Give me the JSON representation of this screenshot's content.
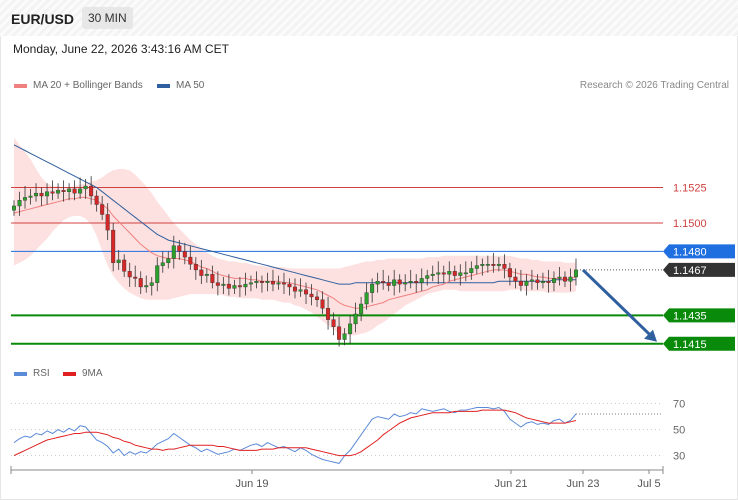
{
  "header": {
    "symbol": "EUR/USD",
    "timeframe": "30 MIN"
  },
  "timestamp": "Monday, June 22, 2026 3:43:16 AM CET",
  "legend": [
    {
      "label": "MA 20 + Bollinger Bands",
      "color": "#f08080"
    },
    {
      "label": "MA 50",
      "color": "#2f5f9e"
    }
  ],
  "rsi_legend": [
    {
      "label": "RSI",
      "color": "#5b8ad8"
    },
    {
      "label": "9MA",
      "color": "#e02020"
    }
  ],
  "credit": "Research © 2026 Trading Central",
  "colors": {
    "bull": "#2ca02c",
    "bear": "#d62728",
    "support": "#0a8a0a",
    "current": "#333333",
    "pivot": "#1f6fe0",
    "resistance": "#d04040",
    "ma20": "#f08080",
    "ma50": "#2f5f9e",
    "band": "#fde0e0",
    "arrow": "#2f5f9e"
  },
  "chart_data": [
    {
      "type": "candlestick",
      "title": "EUR/USD",
      "ylim": [
        1.1405,
        1.1595
      ],
      "x_labels": [
        "Jun 19",
        "Jun 21",
        "Jun 23",
        "Jul 5"
      ],
      "levels": [
        {
          "value": 1.1525,
          "label": "1.1525",
          "kind": "resistance"
        },
        {
          "value": 1.15,
          "label": "1.1500",
          "kind": "resistance"
        },
        {
          "value": 1.148,
          "label": "1.1480",
          "kind": "pivot"
        },
        {
          "value": 1.1467,
          "label": "1.1467",
          "kind": "current"
        },
        {
          "value": 1.1435,
          "label": "1.1435",
          "kind": "support"
        },
        {
          "value": 1.1415,
          "label": "1.1415",
          "kind": "support"
        }
      ],
      "close": [
        1.1512,
        1.1516,
        1.1518,
        1.1519,
        1.1521,
        1.1519,
        1.1522,
        1.1521,
        1.1523,
        1.1522,
        1.1524,
        1.1521,
        1.1524,
        1.1526,
        1.1519,
        1.1513,
        1.1506,
        1.1495,
        1.1472,
        1.1474,
        1.1466,
        1.1462,
        1.1461,
        1.1455,
        1.1456,
        1.1458,
        1.147,
        1.1472,
        1.1475,
        1.1484,
        1.148,
        1.1476,
        1.1471,
        1.1467,
        1.1463,
        1.1464,
        1.1458,
        1.1456,
        1.1457,
        1.1454,
        1.1456,
        1.1455,
        1.1457,
        1.1458,
        1.1459,
        1.1458,
        1.1459,
        1.1457,
        1.1458,
        1.1457,
        1.1455,
        1.1452,
        1.1453,
        1.145,
        1.1448,
        1.1446,
        1.144,
        1.1432,
        1.1427,
        1.1418,
        1.1422,
        1.1429,
        1.1436,
        1.1443,
        1.1451,
        1.1457,
        1.1459,
        1.1458,
        1.1456,
        1.146,
        1.1457,
        1.1458,
        1.1459,
        1.1458,
        1.1461,
        1.1463,
        1.1464,
        1.1465,
        1.1464,
        1.1466,
        1.1463,
        1.1465,
        1.1465,
        1.1468,
        1.147,
        1.1471,
        1.1471,
        1.147,
        1.1471,
        1.1468,
        1.1462,
        1.1459,
        1.1456,
        1.1459,
        1.146,
        1.1458,
        1.1459,
        1.1458,
        1.1461,
        1.1462,
        1.1459,
        1.1462,
        1.1467
      ],
      "ma20": [
        1.1507,
        1.1508,
        1.1509,
        1.151,
        1.1511,
        1.1512,
        1.1513,
        1.1514,
        1.1515,
        1.1516,
        1.1517,
        1.1517,
        1.1518,
        1.1518,
        1.1517,
        1.1516,
        1.1513,
        1.151,
        1.1505,
        1.1501,
        1.1497,
        1.1493,
        1.1489,
        1.1485,
        1.1482,
        1.1479,
        1.1477,
        1.1476,
        1.1475,
        1.1475,
        1.1475,
        1.1474,
        1.1473,
        1.1471,
        1.1469,
        1.1468,
        1.1466,
        1.1464,
        1.1463,
        1.1462,
        1.1461,
        1.1461,
        1.1461,
        1.146,
        1.146,
        1.1459,
        1.1459,
        1.1459,
        1.1459,
        1.1458,
        1.1458,
        1.1457,
        1.1456,
        1.1455,
        1.1454,
        1.1453,
        1.1451,
        1.1449,
        1.1447,
        1.1444,
        1.1442,
        1.1441,
        1.144,
        1.144,
        1.1441,
        1.1442,
        1.1443,
        1.1444,
        1.1446,
        1.1447,
        1.1448,
        1.1449,
        1.145,
        1.1451,
        1.1452,
        1.1453,
        1.1455,
        1.1456,
        1.1457,
        1.1459,
        1.146,
        1.1461,
        1.1462,
        1.1463,
        1.1464,
        1.1465,
        1.1466,
        1.1467,
        1.1467,
        1.1467,
        1.1466,
        1.1465,
        1.1464,
        1.1464,
        1.1463,
        1.1462,
        1.1462,
        1.1461,
        1.1461,
        1.1461,
        1.146,
        1.1461,
        1.1462
      ],
      "upper_band": [
        1.156,
        1.1555,
        1.155,
        1.1545,
        1.1538,
        1.1532,
        1.1528,
        1.1526,
        1.1526,
        1.1525,
        1.1525,
        1.1526,
        1.1527,
        1.1528,
        1.1529,
        1.153,
        1.1532,
        1.1535,
        1.1537,
        1.1538,
        1.1538,
        1.1537,
        1.1534,
        1.153,
        1.1526,
        1.1521,
        1.1515,
        1.151,
        1.1505,
        1.15,
        1.1496,
        1.1492,
        1.1488,
        1.1485,
        1.1482,
        1.1479,
        1.1477,
        1.1475,
        1.1474,
        1.1473,
        1.1473,
        1.1472,
        1.1472,
        1.1471,
        1.147,
        1.147,
        1.1469,
        1.1469,
        1.1469,
        1.1469,
        1.1468,
        1.1468,
        1.1468,
        1.1468,
        1.1468,
        1.1468,
        1.1468,
        1.1468,
        1.1468,
        1.1468,
        1.1469,
        1.147,
        1.1471,
        1.1472,
        1.1473,
        1.1473,
        1.1474,
        1.1474,
        1.1475,
        1.1475,
        1.1475,
        1.1475,
        1.1475,
        1.1475,
        1.1475,
        1.1476,
        1.1476,
        1.1476,
        1.1477,
        1.1477,
        1.1477,
        1.1477,
        1.1477,
        1.1477,
        1.1477,
        1.1477,
        1.1477,
        1.1477,
        1.1477,
        1.1477,
        1.1477,
        1.1476,
        1.1475,
        1.1475,
        1.1474,
        1.1474,
        1.1473,
        1.1473,
        1.1473,
        1.1473,
        1.1472,
        1.1472,
        1.1472
      ],
      "lower_band": [
        1.147,
        1.1472,
        1.1474,
        1.1477,
        1.1481,
        1.1485,
        1.1489,
        1.1494,
        1.1498,
        1.1502,
        1.1504,
        1.1505,
        1.1505,
        1.1503,
        1.1499,
        1.1491,
        1.148,
        1.147,
        1.1463,
        1.1458,
        1.1454,
        1.1451,
        1.1449,
        1.1447,
        1.1446,
        1.1446,
        1.1446,
        1.1446,
        1.1446,
        1.1447,
        1.1448,
        1.1449,
        1.145,
        1.145,
        1.145,
        1.145,
        1.145,
        1.145,
        1.1449,
        1.1448,
        1.1448,
        1.1447,
        1.1447,
        1.1447,
        1.1447,
        1.1446,
        1.1446,
        1.1446,
        1.1445,
        1.1444,
        1.1444,
        1.1442,
        1.1441,
        1.1439,
        1.1437,
        1.1434,
        1.1431,
        1.1428,
        1.1425,
        1.1422,
        1.1421,
        1.1421,
        1.1421,
        1.1422,
        1.1423,
        1.1425,
        1.1428,
        1.143,
        1.1433,
        1.1436,
        1.1439,
        1.1442,
        1.1444,
        1.1446,
        1.1448,
        1.145,
        1.1451,
        1.1452,
        1.1453,
        1.1453,
        1.1453,
        1.1452,
        1.1452,
        1.1452,
        1.1452,
        1.1452,
        1.1452,
        1.1452,
        1.1452,
        1.1452,
        1.1453,
        1.1453,
        1.1453,
        1.1452,
        1.1452,
        1.1452,
        1.1452,
        1.1451,
        1.1451,
        1.1451,
        1.1451,
        1.1451,
        1.1452
      ],
      "ma50": [
        1.1555,
        1.1553,
        1.1551,
        1.1549,
        1.1547,
        1.1545,
        1.1543,
        1.1541,
        1.1539,
        1.1537,
        1.1535,
        1.1533,
        1.1531,
        1.1529,
        1.1527,
        1.1525,
        1.1522,
        1.1519,
        1.1516,
        1.1513,
        1.151,
        1.1507,
        1.1504,
        1.1501,
        1.1498,
        1.1495,
        1.1492,
        1.149,
        1.1488,
        1.1487,
        1.1486,
        1.1485,
        1.1484,
        1.1483,
        1.1482,
        1.1481,
        1.148,
        1.1479,
        1.1478,
        1.1477,
        1.1476,
        1.1475,
        1.1474,
        1.1473,
        1.1472,
        1.1471,
        1.147,
        1.1469,
        1.1468,
        1.1467,
        1.1466,
        1.1465,
        1.1464,
        1.1463,
        1.1462,
        1.1461,
        1.146,
        1.1459,
        1.1458,
        1.1457,
        1.1457,
        1.1457,
        1.1458,
        1.1458,
        1.1458,
        1.1458,
        1.1458,
        1.1458,
        1.1458,
        1.1458,
        1.1458,
        1.1458,
        1.1458,
        1.1458,
        1.1458,
        1.1458,
        1.1458,
        1.1458,
        1.1458,
        1.1458,
        1.1458,
        1.1458,
        1.1458,
        1.1458,
        1.1458,
        1.1458,
        1.1458,
        1.1458,
        1.1459,
        1.1459,
        1.1459,
        1.1459,
        1.1459,
        1.1459,
        1.1459,
        1.1459,
        1.1459,
        1.1459,
        1.146,
        1.146,
        1.146,
        1.146,
        1.146
      ],
      "forecast_arrow": {
        "from": 1.1467,
        "to": 1.1415
      }
    },
    {
      "type": "line",
      "title": "RSI",
      "ylim": [
        22,
        82
      ],
      "y_ticks": [
        70,
        50,
        30
      ],
      "series": [
        {
          "name": "RSI",
          "values": [
            40,
            43,
            45,
            44,
            47,
            46,
            49,
            47,
            50,
            48,
            51,
            49,
            53,
            52,
            47,
            42,
            40,
            37,
            32,
            35,
            30,
            33,
            31,
            33,
            32,
            35,
            39,
            41,
            43,
            47,
            44,
            41,
            38,
            36,
            33,
            35,
            33,
            31,
            32,
            33,
            35,
            34,
            36,
            38,
            39,
            37,
            40,
            38,
            36,
            37,
            35,
            33,
            36,
            34,
            31,
            29,
            27,
            26,
            25,
            24,
            30,
            34,
            40,
            46,
            52,
            58,
            60,
            59,
            58,
            62,
            60,
            61,
            63,
            62,
            66,
            65,
            64,
            65,
            66,
            64,
            63,
            65,
            65,
            66,
            67,
            67,
            67,
            66,
            67,
            64,
            58,
            55,
            52,
            55,
            56,
            54,
            55,
            54,
            57,
            58,
            55,
            57,
            62
          ]
        },
        {
          "name": "9MA",
          "values": [
            30,
            32,
            34,
            36,
            38,
            40,
            42,
            43,
            44,
            45,
            46,
            47,
            47,
            48,
            48,
            48,
            47,
            46,
            44,
            43,
            41,
            40,
            38,
            37,
            36,
            35,
            35,
            34,
            35,
            35,
            36,
            37,
            38,
            38,
            38,
            38,
            38,
            37,
            37,
            36,
            35,
            34,
            34,
            34,
            34,
            35,
            35,
            35,
            36,
            36,
            36,
            36,
            36,
            36,
            35,
            34,
            33,
            32,
            31,
            30,
            30,
            30,
            31,
            33,
            36,
            39,
            42,
            46,
            49,
            52,
            55,
            57,
            59,
            60,
            61,
            62,
            63,
            63,
            63,
            63,
            64,
            64,
            64,
            64,
            64,
            65,
            65,
            65,
            65,
            65,
            64,
            63,
            61,
            59,
            58,
            57,
            56,
            55,
            55,
            55,
            55,
            56,
            57
          ]
        }
      ]
    }
  ]
}
